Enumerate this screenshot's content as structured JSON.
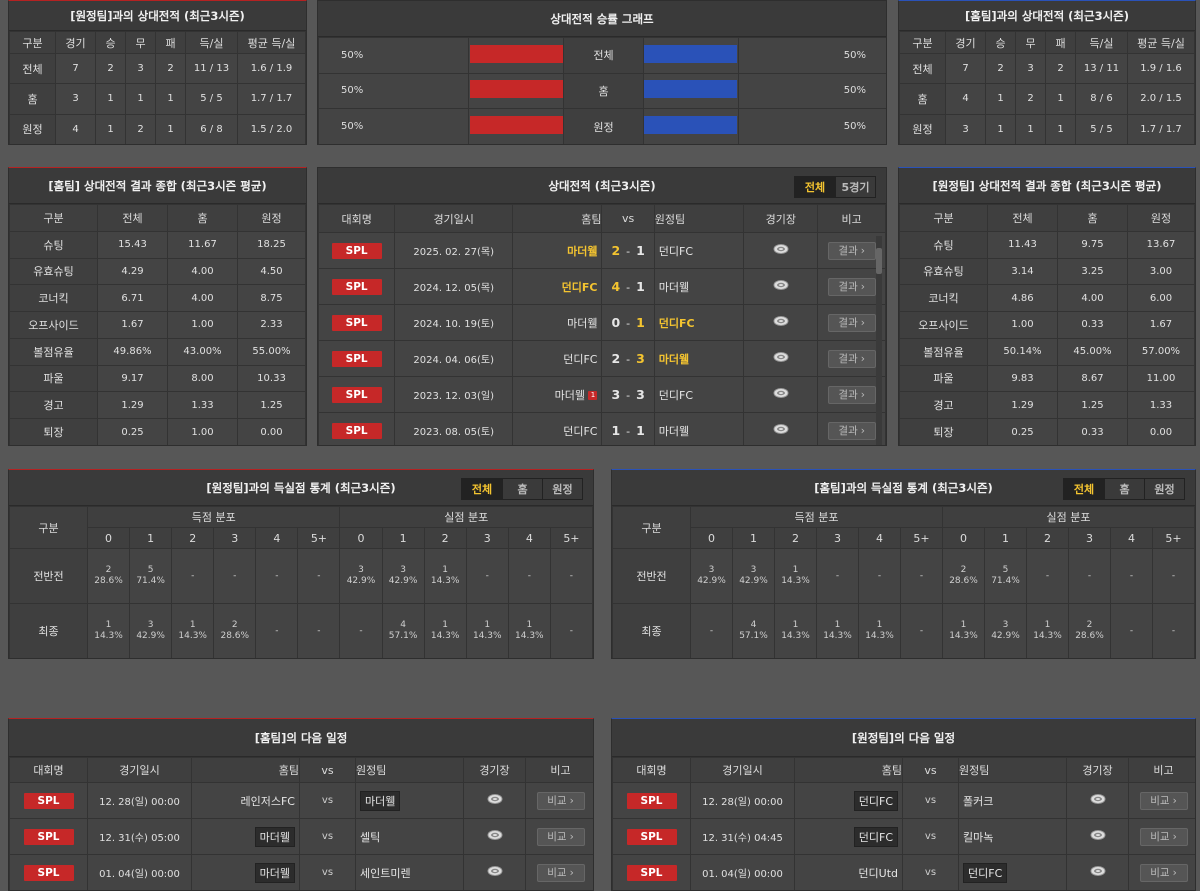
{
  "colors": {
    "red": "#c62828",
    "blue": "#2a52b8",
    "highlight": "#f4c430"
  },
  "away_h2h": {
    "title": "[원정팀]과의 상대전적 (최근3시즌)",
    "headers": [
      "구분",
      "경기",
      "승",
      "무",
      "패",
      "득/실",
      "평균 득/실"
    ],
    "rows": [
      [
        "전체",
        "7",
        "2",
        "3",
        "2",
        "11 / 13",
        "1.6 / 1.9"
      ],
      [
        "홈",
        "3",
        "1",
        "1",
        "1",
        "5 / 5",
        "1.7 / 1.7"
      ],
      [
        "원정",
        "4",
        "1",
        "2",
        "1",
        "6 / 8",
        "1.5 / 2.0"
      ]
    ]
  },
  "graph": {
    "title": "상대전적 승률 그래프",
    "rows": [
      {
        "label": "전체",
        "left": "50%",
        "right": "50%",
        "left_pct": 50,
        "right_pct": 50
      },
      {
        "label": "홈",
        "left": "50%",
        "right": "50%",
        "left_pct": 50,
        "right_pct": 50
      },
      {
        "label": "원정",
        "left": "50%",
        "right": "50%",
        "left_pct": 50,
        "right_pct": 50
      }
    ]
  },
  "home_h2h": {
    "title": "[홈팀]과의 상대전적 (최근3시즌)",
    "headers": [
      "구분",
      "경기",
      "승",
      "무",
      "패",
      "득/실",
      "평균 득/실"
    ],
    "rows": [
      [
        "전체",
        "7",
        "2",
        "3",
        "2",
        "13 / 11",
        "1.9 / 1.6"
      ],
      [
        "홈",
        "4",
        "1",
        "2",
        "1",
        "8 / 6",
        "2.0 / 1.5"
      ],
      [
        "원정",
        "3",
        "1",
        "1",
        "1",
        "5 / 5",
        "1.7 / 1.7"
      ]
    ]
  },
  "home_summary": {
    "title": "[홈팀] 상대전적 결과 종합 (최근3시즌 평균)",
    "headers": [
      "구분",
      "전체",
      "홈",
      "원정"
    ],
    "rows": [
      [
        "슈팅",
        "15.43",
        "11.67",
        "18.25"
      ],
      [
        "유효슈팅",
        "4.29",
        "4.00",
        "4.50"
      ],
      [
        "코너킥",
        "6.71",
        "4.00",
        "8.75"
      ],
      [
        "오프사이드",
        "1.67",
        "1.00",
        "2.33"
      ],
      [
        "볼점유율",
        "49.86%",
        "43.00%",
        "55.00%"
      ],
      [
        "파울",
        "9.17",
        "8.00",
        "10.33"
      ],
      [
        "경고",
        "1.29",
        "1.33",
        "1.25"
      ],
      [
        "퇴장",
        "0.25",
        "1.00",
        "0.00"
      ]
    ]
  },
  "away_summary": {
    "title": "[원정팀] 상대전적 결과 종합 (최근3시즌 평균)",
    "headers": [
      "구분",
      "전체",
      "홈",
      "원정"
    ],
    "rows": [
      [
        "슈팅",
        "11.43",
        "9.75",
        "13.67"
      ],
      [
        "유효슈팅",
        "3.14",
        "3.25",
        "3.00"
      ],
      [
        "코너킥",
        "4.86",
        "4.00",
        "6.00"
      ],
      [
        "오프사이드",
        "1.00",
        "0.33",
        "1.67"
      ],
      [
        "볼점유율",
        "50.14%",
        "45.00%",
        "57.00%"
      ],
      [
        "파울",
        "9.83",
        "8.67",
        "11.00"
      ],
      [
        "경고",
        "1.29",
        "1.25",
        "1.33"
      ],
      [
        "퇴장",
        "0.25",
        "0.33",
        "0.00"
      ]
    ]
  },
  "recent": {
    "title": "상대전적 (최근3시즌)",
    "tabs": [
      "전체",
      "5경기"
    ],
    "headers": {
      "league": "대회명",
      "date": "경기일시",
      "home": "홈팀",
      "vs": "vs",
      "away": "원정팀",
      "stadium": "경기장",
      "note": "비고"
    },
    "rows": [
      {
        "league": "SPL",
        "date": "2025. 02. 27(목)",
        "home": "마더웰",
        "hs": "2",
        "as": "1",
        "away": "던디FC",
        "winner": "home",
        "btn": "결과"
      },
      {
        "league": "SPL",
        "date": "2024. 12. 05(목)",
        "home": "던디FC",
        "hs": "4",
        "as": "1",
        "away": "마더웰",
        "winner": "home",
        "btn": "결과"
      },
      {
        "league": "SPL",
        "date": "2024. 10. 19(토)",
        "home": "마더웰",
        "hs": "0",
        "as": "1",
        "away": "던디FC",
        "winner": "away",
        "btn": "결과"
      },
      {
        "league": "SPL",
        "date": "2024. 04. 06(토)",
        "home": "던디FC",
        "hs": "2",
        "as": "3",
        "away": "마더웰",
        "winner": "away",
        "btn": "결과"
      },
      {
        "league": "SPL",
        "date": "2023. 12. 03(일)",
        "home": "마더웰",
        "badge": "1",
        "hs": "3",
        "as": "3",
        "away": "던디FC",
        "winner": "none",
        "btn": "결과"
      },
      {
        "league": "SPL",
        "date": "2023. 08. 05(토)",
        "home": "던디FC",
        "hs": "1",
        "as": "1",
        "away": "마더웰",
        "winner": "none",
        "btn": "결과"
      }
    ]
  },
  "away_goals": {
    "title": "[원정팀]과의 득실점 통계 (최근3시즌)",
    "tabs": [
      "전체",
      "홈",
      "원정"
    ],
    "label_header": "구분",
    "groups": [
      "득점 분포",
      "실점 분포"
    ],
    "bins": [
      "0",
      "1",
      "2",
      "3",
      "4",
      "5+"
    ],
    "rows": [
      {
        "label": "전반전",
        "cells": [
          [
            "2",
            "28.6%"
          ],
          [
            "5",
            "71.4%"
          ],
          [
            "-",
            ""
          ],
          [
            "-",
            ""
          ],
          [
            "-",
            ""
          ],
          [
            "-",
            ""
          ],
          [
            "3",
            "42.9%"
          ],
          [
            "3",
            "42.9%"
          ],
          [
            "1",
            "14.3%"
          ],
          [
            "-",
            ""
          ],
          [
            "-",
            ""
          ],
          [
            "-",
            ""
          ]
        ]
      },
      {
        "label": "최종",
        "cells": [
          [
            "1",
            "14.3%"
          ],
          [
            "3",
            "42.9%"
          ],
          [
            "1",
            "14.3%"
          ],
          [
            "2",
            "28.6%"
          ],
          [
            "-",
            ""
          ],
          [
            "-",
            ""
          ],
          [
            "-",
            ""
          ],
          [
            "4",
            "57.1%"
          ],
          [
            "1",
            "14.3%"
          ],
          [
            "1",
            "14.3%"
          ],
          [
            "1",
            "14.3%"
          ],
          [
            "-",
            ""
          ]
        ]
      }
    ]
  },
  "home_goals": {
    "title": "[홈팀]과의 득실점 통계 (최근3시즌)",
    "tabs": [
      "전체",
      "홈",
      "원정"
    ],
    "label_header": "구분",
    "groups": [
      "득점 분포",
      "실점 분포"
    ],
    "bins": [
      "0",
      "1",
      "2",
      "3",
      "4",
      "5+"
    ],
    "rows": [
      {
        "label": "전반전",
        "cells": [
          [
            "3",
            "42.9%"
          ],
          [
            "3",
            "42.9%"
          ],
          [
            "1",
            "14.3%"
          ],
          [
            "-",
            ""
          ],
          [
            "-",
            ""
          ],
          [
            "-",
            ""
          ],
          [
            "2",
            "28.6%"
          ],
          [
            "5",
            "71.4%"
          ],
          [
            "-",
            ""
          ],
          [
            "-",
            ""
          ],
          [
            "-",
            ""
          ],
          [
            "-",
            ""
          ]
        ]
      },
      {
        "label": "최종",
        "cells": [
          [
            "-",
            ""
          ],
          [
            "4",
            "57.1%"
          ],
          [
            "1",
            "14.3%"
          ],
          [
            "1",
            "14.3%"
          ],
          [
            "1",
            "14.3%"
          ],
          [
            "-",
            ""
          ],
          [
            "1",
            "14.3%"
          ],
          [
            "3",
            "42.9%"
          ],
          [
            "1",
            "14.3%"
          ],
          [
            "2",
            "28.6%"
          ],
          [
            "-",
            ""
          ],
          [
            "-",
            ""
          ]
        ]
      }
    ]
  },
  "home_next": {
    "title": "[홈팀]의 다음 일정",
    "headers": {
      "league": "대회명",
      "date": "경기일시",
      "home": "홈팀",
      "vs": "vs",
      "away": "원정팀",
      "stadium": "경기장",
      "note": "비고"
    },
    "rows": [
      {
        "league": "SPL",
        "date": "12. 28(일) 00:00",
        "home": "레인저스FC",
        "vs": "vs",
        "away": "마더웰",
        "box": "away",
        "btn": "비교"
      },
      {
        "league": "SPL",
        "date": "12. 31(수) 05:00",
        "home": "마더웰",
        "vs": "vs",
        "away": "셀틱",
        "box": "home",
        "btn": "비교"
      },
      {
        "league": "SPL",
        "date": "01. 04(일) 00:00",
        "home": "마더웰",
        "vs": "vs",
        "away": "세인트미렌",
        "box": "home",
        "btn": "비교"
      }
    ]
  },
  "away_next": {
    "title": "[원정팀]의 다음 일정",
    "headers": {
      "league": "대회명",
      "date": "경기일시",
      "home": "홈팀",
      "vs": "vs",
      "away": "원정팀",
      "stadium": "경기장",
      "note": "비고"
    },
    "rows": [
      {
        "league": "SPL",
        "date": "12. 28(일) 00:00",
        "home": "던디FC",
        "vs": "vs",
        "away": "폴커크",
        "box": "home",
        "btn": "비교"
      },
      {
        "league": "SPL",
        "date": "12. 31(수) 04:45",
        "home": "던디FC",
        "vs": "vs",
        "away": "킬마녹",
        "box": "home",
        "btn": "비교"
      },
      {
        "league": "SPL",
        "date": "01. 04(일) 00:00",
        "home": "던디Utd",
        "vs": "vs",
        "away": "던디FC",
        "box": "away",
        "btn": "비교"
      }
    ]
  }
}
